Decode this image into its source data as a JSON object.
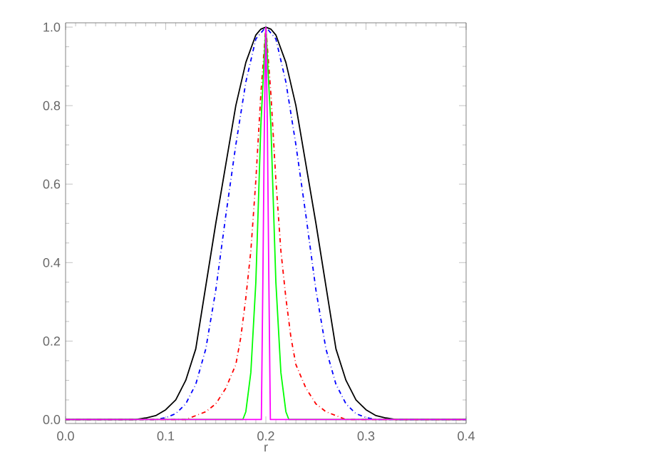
{
  "chart_data": {
    "type": "line",
    "xlabel": "r",
    "xlim": [
      0,
      0.4
    ],
    "ylim": [
      -0.01,
      1.011
    ],
    "xticks": [
      {
        "value": 0,
        "label": "0.0"
      },
      {
        "value": 0.1,
        "label": "0.1"
      },
      {
        "value": 0.2,
        "label": "0.2"
      },
      {
        "value": 0.3,
        "label": "0.3"
      },
      {
        "value": 0.4,
        "label": "0.4"
      }
    ],
    "yticks": [
      {
        "value": 0,
        "label": "0.0"
      },
      {
        "value": 0.2,
        "label": "0.2"
      },
      {
        "value": 0.4,
        "label": "0.4"
      },
      {
        "value": 0.6,
        "label": "0.6"
      },
      {
        "value": 0.8,
        "label": "0.8"
      },
      {
        "value": 1,
        "label": "1.0"
      }
    ],
    "grid": false,
    "marker": "none",
    "series": [
      {
        "color": "#000000",
        "line_style": "solid",
        "x": [
          0,
          0.07,
          0.08,
          0.09,
          0.1,
          0.11,
          0.12,
          0.13,
          0.14,
          0.15,
          0.16,
          0.17,
          0.18,
          0.19,
          0.195,
          0.2,
          0.205,
          0.21,
          0.22,
          0.23,
          0.24,
          0.25,
          0.26,
          0.27,
          0.28,
          0.29,
          0.3,
          0.31,
          0.32,
          0.33,
          0.4
        ],
        "values": [
          0,
          0,
          0.004,
          0.01,
          0.025,
          0.05,
          0.1,
          0.18,
          0.34,
          0.5,
          0.65,
          0.8,
          0.91,
          0.98,
          0.995,
          1,
          0.995,
          0.98,
          0.91,
          0.8,
          0.65,
          0.5,
          0.34,
          0.18,
          0.1,
          0.05,
          0.025,
          0.01,
          0.004,
          0,
          0
        ]
      },
      {
        "color": "#0000ff",
        "line_style": "dashdot",
        "x": [
          0,
          0.09,
          0.1,
          0.11,
          0.12,
          0.13,
          0.14,
          0.15,
          0.16,
          0.17,
          0.18,
          0.19,
          0.2,
          0.21,
          0.22,
          0.23,
          0.24,
          0.25,
          0.26,
          0.27,
          0.28,
          0.29,
          0.3,
          0.31,
          0.4
        ],
        "values": [
          0,
          0,
          0.005,
          0.015,
          0.04,
          0.09,
          0.18,
          0.33,
          0.52,
          0.7,
          0.86,
          0.97,
          1,
          0.97,
          0.86,
          0.7,
          0.52,
          0.33,
          0.18,
          0.09,
          0.04,
          0.015,
          0.005,
          0,
          0
        ]
      },
      {
        "color": "#ff0000",
        "line_style": "dashdot",
        "x": [
          0,
          0.12,
          0.13,
          0.14,
          0.15,
          0.16,
          0.17,
          0.175,
          0.18,
          0.185,
          0.19,
          0.195,
          0.2,
          0.205,
          0.21,
          0.215,
          0.22,
          0.225,
          0.23,
          0.24,
          0.25,
          0.26,
          0.27,
          0.28,
          0.4
        ],
        "values": [
          0,
          0,
          0.01,
          0.02,
          0.04,
          0.08,
          0.14,
          0.21,
          0.31,
          0.43,
          0.61,
          0.83,
          1,
          0.83,
          0.61,
          0.43,
          0.31,
          0.21,
          0.14,
          0.08,
          0.04,
          0.02,
          0.01,
          0,
          0
        ]
      },
      {
        "color": "#00ff00",
        "line_style": "solid",
        "x": [
          0,
          0.177,
          0.18,
          0.185,
          0.19,
          0.195,
          0.2,
          0.205,
          0.21,
          0.215,
          0.22,
          0.223,
          0.4
        ],
        "values": [
          0,
          0,
          0.02,
          0.12,
          0.35,
          0.75,
          1,
          0.75,
          0.35,
          0.12,
          0.02,
          0,
          0
        ]
      },
      {
        "color": "#ff00ff",
        "line_style": "solid",
        "x": [
          0,
          0.1955,
          0.197,
          0.1985,
          0.2,
          0.2015,
          0.203,
          0.2045,
          0.4
        ],
        "values": [
          0,
          0,
          0.35,
          0.75,
          1,
          0.75,
          0.35,
          0,
          0
        ]
      }
    ]
  }
}
